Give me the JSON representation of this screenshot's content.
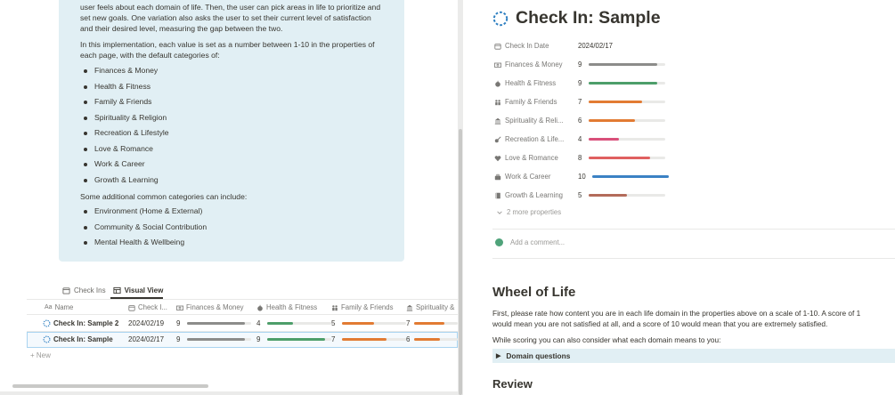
{
  "colors": {
    "gray": "#8c8c8a",
    "green": "#4d9e6a",
    "orange": "#e27b33",
    "red": "#e06060",
    "pink": "#d9507a",
    "blue": "#3b82c4",
    "brown": "#b36b5a",
    "callout_bg": "#e1eff4"
  },
  "callout": {
    "line1": "user feels about each domain of life. Then, the user can pick areas in life to prioritize and",
    "line2": "set new goals. One variation also asks the user to set their current level of satisfaction",
    "line3": "and their desired level, measuring the gap between the two.",
    "impl1": "In this implementation, each value is set as a number between 1-10 in the properties of",
    "impl2": "each page, with the default categories of:",
    "default_categories": [
      "Finances & Money",
      "Health & Fitness",
      "Family & Friends",
      "Spirituality & Religion",
      "Recreation & Lifestyle",
      "Love & Romance",
      "Work & Career",
      "Growth & Learning"
    ],
    "additional_intro": "Some additional common categories can include:",
    "additional_categories": [
      "Environment (Home & External)",
      "Community & Social Contribution",
      "Mental Health & Wellbeing"
    ]
  },
  "views": {
    "tab1": "Check Ins",
    "tab2": "Visual View"
  },
  "table": {
    "headers": {
      "name": "Name",
      "date": "Check I...",
      "finances": "Finances & Money",
      "health": "Health & Fitness",
      "family": "Family & Friends",
      "spirituality": "Spirituality &"
    },
    "rows": [
      {
        "name": "Check In: Sample 2",
        "date": "2024/02/19",
        "finances": "9",
        "finances_fill": 0.9,
        "health": "4",
        "health_fill": 0.4,
        "family": "5",
        "family_fill": 0.5,
        "spirituality": "7",
        "spirituality_fill": 0.7
      },
      {
        "name": "Check In: Sample",
        "date": "2024/02/17",
        "finances": "9",
        "finances_fill": 0.9,
        "health": "9",
        "health_fill": 0.9,
        "family": "7",
        "family_fill": 0.7,
        "spirituality": "6",
        "spirituality_fill": 0.6
      }
    ],
    "new_label": "New"
  },
  "page": {
    "title": "Check In: Sample",
    "properties": [
      {
        "label": "Check In Date",
        "value": "2024/02/17",
        "icon": "calendar-icon"
      },
      {
        "label": "Finances & Money",
        "value": "9",
        "fill": 0.9,
        "color": "gray",
        "icon": "money-icon"
      },
      {
        "label": "Health & Fitness",
        "value": "9",
        "fill": 0.9,
        "color": "green",
        "icon": "apple-icon"
      },
      {
        "label": "Family & Friends",
        "value": "7",
        "fill": 0.7,
        "color": "orange",
        "icon": "people-icon"
      },
      {
        "label": "Spirituality & Reli...",
        "value": "6",
        "fill": 0.6,
        "color": "orange",
        "icon": "temple-icon"
      },
      {
        "label": "Recreation & Life...",
        "value": "4",
        "fill": 0.4,
        "color": "pink",
        "icon": "recreation-icon"
      },
      {
        "label": "Love & Romance",
        "value": "8",
        "fill": 0.8,
        "color": "red",
        "icon": "heart-icon"
      },
      {
        "label": "Work & Career",
        "value": "10",
        "fill": 1.0,
        "color": "blue",
        "icon": "briefcase-icon"
      },
      {
        "label": "Growth & Learning",
        "value": "5",
        "fill": 0.5,
        "color": "brown",
        "icon": "book-icon"
      }
    ],
    "more_properties": "2 more properties",
    "comment_placeholder": "Add a comment...",
    "wheel_heading": "Wheel of Life",
    "wheel_text_1": "First, please rate how content you are in each life domain in the properties above on a scale of 1-10. A score of 1",
    "wheel_text_2": "would mean you are not satisfied at all, and a score of 10 would mean that you are extremely satisfied.",
    "wheel_text_3": "While scoring you can also consider what each domain means to you:",
    "toggle_label": "Domain questions",
    "review_heading": "Review"
  }
}
